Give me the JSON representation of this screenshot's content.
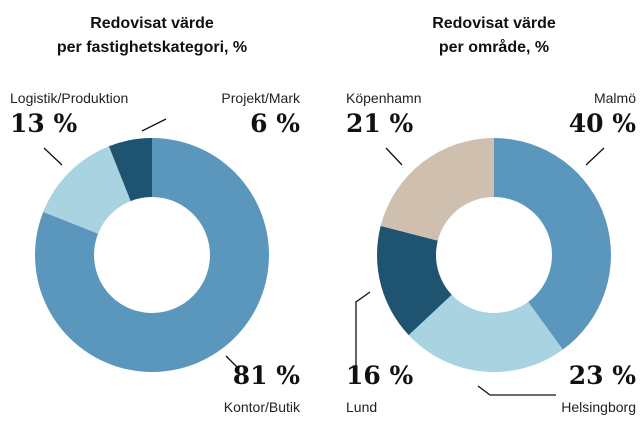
{
  "chart_data": [
    {
      "type": "pie",
      "title": [
        "Redovisat värde",
        "per fastighetskategori, %"
      ],
      "categories": [
        "Kontor/Butik",
        "Logistik/Produktion",
        "Projekt/Mark"
      ],
      "values": [
        81,
        13,
        6
      ],
      "value_labels": [
        "81 %",
        "13 %",
        "6 %"
      ],
      "colors": [
        "#5b97bd",
        "#a9d3e0",
        "#1f5470"
      ]
    },
    {
      "type": "pie",
      "title": [
        "Redovisat värde",
        "per område, %"
      ],
      "categories": [
        "Malmö",
        "Helsingborg",
        "Lund",
        "Köpenhamn"
      ],
      "values": [
        40,
        23,
        16,
        21
      ],
      "value_labels": [
        "40 %",
        "23 %",
        "16 %",
        "21 %"
      ],
      "colors": [
        "#5b97bd",
        "#a9d3e0",
        "#1f5470",
        "#cfbfae"
      ]
    }
  ]
}
